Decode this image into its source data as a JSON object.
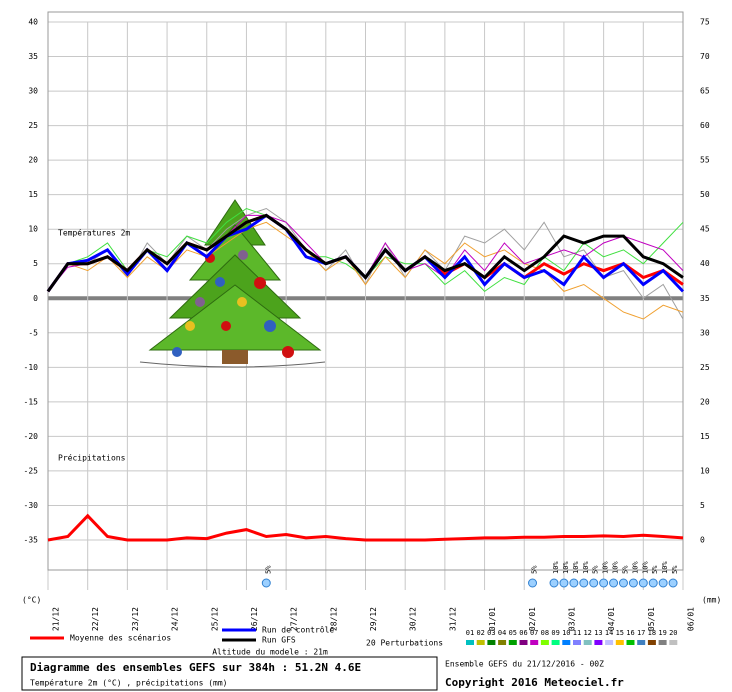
{
  "chart_data": {
    "type": "line",
    "x": [
      0,
      12,
      24,
      36,
      48,
      60,
      72,
      84,
      96,
      108,
      120,
      132,
      144,
      156,
      168,
      180,
      192,
      204,
      216,
      228,
      240,
      252,
      264,
      276,
      288,
      300,
      312,
      324,
      336,
      348,
      360,
      372,
      384
    ],
    "xlim": [
      0,
      384
    ],
    "xticks": [
      {
        "value": 0,
        "label": "21/12"
      },
      {
        "value": 24,
        "label": "22/12"
      },
      {
        "value": 48,
        "label": "23/12"
      },
      {
        "value": 72,
        "label": "24/12"
      },
      {
        "value": 96,
        "label": "25/12"
      },
      {
        "value": 120,
        "label": "26/12"
      },
      {
        "value": 144,
        "label": "27/12"
      },
      {
        "value": 168,
        "label": "28/12"
      },
      {
        "value": 192,
        "label": "29/12"
      },
      {
        "value": 216,
        "label": "30/12"
      },
      {
        "value": 240,
        "label": "31/12"
      },
      {
        "value": 264,
        "label": "01/01"
      },
      {
        "value": 288,
        "label": "02/01"
      },
      {
        "value": 312,
        "label": "03/01"
      },
      {
        "value": 336,
        "label": "04/01"
      },
      {
        "value": 360,
        "label": "05/01"
      },
      {
        "value": 384,
        "label": "06/01"
      }
    ],
    "ylim": [
      -35,
      40
    ],
    "yticks": [
      -35,
      -30,
      -25,
      -20,
      -15,
      -10,
      -5,
      0,
      5,
      10,
      15,
      20,
      25,
      30,
      35,
      40
    ],
    "y2lim": [
      0,
      75
    ],
    "y2ticks": [
      0,
      5,
      10,
      15,
      20,
      25,
      30,
      35,
      40,
      45,
      50,
      55,
      60,
      65,
      70,
      75
    ],
    "grid": true,
    "zero_line": true,
    "y_unit": "(°C)",
    "y2_unit": "(mm)",
    "temperature_label": "Températures 2m",
    "precipitation_label": "Précipitations",
    "series": [
      {
        "color": "#a0a0a0",
        "values": [
          1,
          5,
          5,
          7,
          3,
          8,
          5,
          9,
          7,
          10,
          12,
          13,
          11,
          7,
          4,
          7,
          2,
          8,
          3,
          7,
          4,
          9,
          8,
          10,
          7,
          11,
          6,
          7,
          3,
          4,
          0,
          2,
          -3
        ]
      },
      {
        "color": "#40e040",
        "values": [
          1,
          5,
          6,
          8,
          4,
          7,
          6,
          9,
          8,
          11,
          13,
          12,
          10,
          6,
          6,
          5,
          3,
          6,
          5,
          5,
          2,
          4,
          1,
          3,
          2,
          6,
          4,
          8,
          6,
          7,
          5,
          8,
          11
        ]
      },
      {
        "color": "#f0a030",
        "values": [
          1,
          5,
          4,
          6,
          3,
          6,
          4,
          7,
          6,
          8,
          10,
          11,
          9,
          7,
          4,
          6,
          2,
          6,
          3,
          7,
          5,
          8,
          6,
          7,
          5,
          4,
          1,
          2,
          0,
          -2,
          -3,
          -1,
          -2
        ]
      },
      {
        "color": "#c000c0",
        "values": [
          1,
          4.5,
          5,
          6,
          4,
          7,
          5,
          8,
          7,
          9,
          12,
          12,
          11,
          8,
          5,
          6,
          3,
          8,
          4,
          5,
          3,
          7,
          4,
          8,
          5,
          6,
          7,
          6,
          8,
          9,
          8,
          7,
          4
        ]
      },
      {
        "name": "Moyenne des scénarios",
        "color": "#ff0000",
        "values": [
          1,
          5,
          5,
          6,
          4,
          7,
          5,
          8,
          7,
          9,
          11,
          12,
          10,
          7,
          5,
          6,
          3,
          7,
          4,
          6,
          3.5,
          5,
          3,
          5,
          3,
          5,
          3.5,
          5,
          4,
          5,
          3,
          4,
          2
        ]
      },
      {
        "name": "Run de contrôle",
        "color": "#0000ff",
        "values": [
          1,
          5,
          5.5,
          7,
          3.5,
          7,
          4,
          8,
          6,
          9,
          10,
          12,
          10,
          6,
          5,
          6,
          3,
          7,
          4,
          6,
          3,
          6,
          2,
          5,
          3,
          4,
          2,
          6,
          3,
          5,
          2,
          4,
          1
        ]
      },
      {
        "name": "Run GFS",
        "color": "#000000",
        "values": [
          1,
          5,
          5,
          6,
          4,
          7,
          5,
          8,
          7,
          9,
          11,
          12,
          10,
          7,
          5,
          6,
          3,
          7,
          4,
          6,
          4,
          5,
          3,
          6,
          4,
          6,
          9,
          8,
          9,
          9,
          6,
          5,
          3
        ]
      },
      {
        "color": "#ff0000",
        "axis": "y2",
        "values": [
          0,
          0.5,
          3.5,
          0.5,
          0,
          0,
          0,
          0.3,
          0.2,
          1,
          1.5,
          0.5,
          0.8,
          0.3,
          0.5,
          0.2,
          0,
          0,
          0,
          0,
          0.1,
          0.2,
          0.3,
          0.3,
          0.4,
          0.4,
          0.5,
          0.5,
          0.6,
          0.5,
          0.7,
          0.5,
          0.3
        ]
      }
    ],
    "snow": [
      {
        "x": 132,
        "label": "5%"
      },
      {
        "x": 293,
        "label": "5%"
      },
      {
        "x": 306,
        "label": "10%"
      },
      {
        "x": 312,
        "label": "10%"
      },
      {
        "x": 318,
        "label": "10%"
      },
      {
        "x": 324,
        "label": "10%"
      },
      {
        "x": 330,
        "label": "5%"
      },
      {
        "x": 336,
        "label": "10%"
      },
      {
        "x": 342,
        "label": "10%"
      },
      {
        "x": 348,
        "label": "5%"
      },
      {
        "x": 354,
        "label": "10%"
      },
      {
        "x": 360,
        "label": "10%"
      },
      {
        "x": 366,
        "label": "5%"
      },
      {
        "x": 372,
        "label": "10%"
      },
      {
        "x": 378,
        "label": "5%"
      }
    ],
    "altitude": "Altitude du modele : 21m",
    "perturbations_label": "20 Perturbations",
    "perturbation_numbers": [
      "01",
      "02",
      "03",
      "04",
      "05",
      "06",
      "07",
      "08",
      "09",
      "10",
      "11",
      "12",
      "13",
      "14",
      "15",
      "16",
      "17",
      "18",
      "19",
      "20"
    ],
    "perturbation_colors": [
      "#00c0c0",
      "#c0c000",
      "#008000",
      "#808000",
      "#00a000",
      "#800080",
      "#c000c0",
      "#80ff00",
      "#00ff80",
      "#0080ff",
      "#8080ff",
      "#80c0c0",
      "#8000ff",
      "#c0c0ff",
      "#ffc000",
      "#00c000",
      "#4080c0",
      "#804000",
      "#808080",
      "#c0c0c0"
    ],
    "footer_title": "Diagramme des ensembles GEFS sur 384h : 51.2N 4.6E",
    "footer_subtitle": "Température 2m (°C) , précipitations (mm)",
    "run_info": "Ensemble GEFS du 21/12/2016 - 00Z",
    "copyright": "Copyright 2016 Meteociel.fr"
  }
}
